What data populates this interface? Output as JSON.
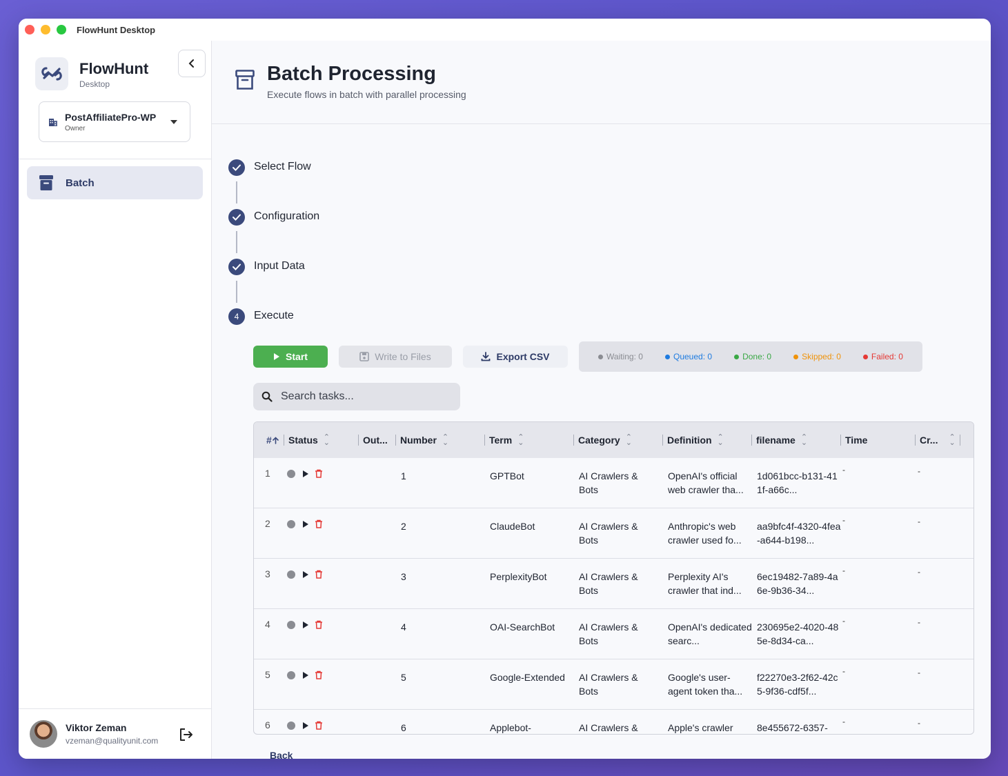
{
  "window": {
    "title": "FlowHunt Desktop"
  },
  "sidebar": {
    "brand": "FlowHunt",
    "brand_sub": "Desktop",
    "org": {
      "name": "PostAffiliatePro-WP",
      "role": "Owner"
    },
    "nav": [
      {
        "label": "Batch",
        "icon": "archive-icon",
        "active": true
      }
    ],
    "user": {
      "name": "Viktor Zeman",
      "email": "vzeman@qualityunit.com"
    }
  },
  "header": {
    "title": "Batch Processing",
    "subtitle": "Execute flows in batch with parallel processing"
  },
  "steps": [
    {
      "label": "Select Flow",
      "done": true
    },
    {
      "label": "Configuration",
      "done": true
    },
    {
      "label": "Input Data",
      "done": true
    },
    {
      "label": "Execute",
      "done": false,
      "number": "4"
    }
  ],
  "toolbar": {
    "start": "Start",
    "write": "Write to Files",
    "export": "Export CSV"
  },
  "status_counts": {
    "waiting": "Waiting: 0",
    "queued": "Queued: 0",
    "done": "Done: 0",
    "skipped": "Skipped: 0",
    "failed": "Failed: 0"
  },
  "colors": {
    "waiting": "#8a8c92",
    "queued": "#1e7be0",
    "done": "#3aa845",
    "skipped": "#f0930a",
    "failed": "#e53935",
    "accent": "#3b4a7c",
    "start_green": "#4caf50"
  },
  "search": {
    "placeholder": "Search tasks..."
  },
  "table": {
    "headers": {
      "index": "#",
      "status": "Status",
      "output": "Out...",
      "number": "Number",
      "term": "Term",
      "category": "Category",
      "definition": "Definition",
      "filename": "filename",
      "time": "Time",
      "created": "Cr..."
    },
    "rows": [
      {
        "index": "1",
        "number": "1",
        "term": "GPTBot",
        "category": "AI Crawlers & Bots",
        "definition": "OpenAI's official web crawler tha...",
        "filename": "1d061bcc-b131-411f-a66c...",
        "time": "-",
        "created": "-"
      },
      {
        "index": "2",
        "number": "2",
        "term": "ClaudeBot",
        "category": "AI Crawlers & Bots",
        "definition": "Anthropic's web crawler used fo...",
        "filename": "aa9bfc4f-4320-4fea-a644-b198...",
        "time": "-",
        "created": "-"
      },
      {
        "index": "3",
        "number": "3",
        "term": "PerplexityBot",
        "category": "AI Crawlers & Bots",
        "definition": "Perplexity AI's crawler that ind...",
        "filename": "6ec19482-7a89-4a6e-9b36-34...",
        "time": "-",
        "created": "-"
      },
      {
        "index": "4",
        "number": "4",
        "term": "OAI-SearchBot",
        "category": "AI Crawlers & Bots",
        "definition": "OpenAI's dedicated searc...",
        "filename": "230695e2-4020-485e-8d34-ca...",
        "time": "-",
        "created": "-"
      },
      {
        "index": "5",
        "number": "5",
        "term": "Google-Extended",
        "category": "AI Crawlers & Bots",
        "definition": "Google's user-agent token tha...",
        "filename": "f22270e3-2f62-42c5-9f36-cdf5f...",
        "time": "-",
        "created": "-"
      },
      {
        "index": "6",
        "number": "6",
        "term": "Applebot-",
        "category": "AI Crawlers &",
        "definition": "Apple's crawler",
        "filename": "8e455672-6357-",
        "time": "-",
        "created": "-"
      }
    ]
  },
  "footer": {
    "back": "Back"
  }
}
